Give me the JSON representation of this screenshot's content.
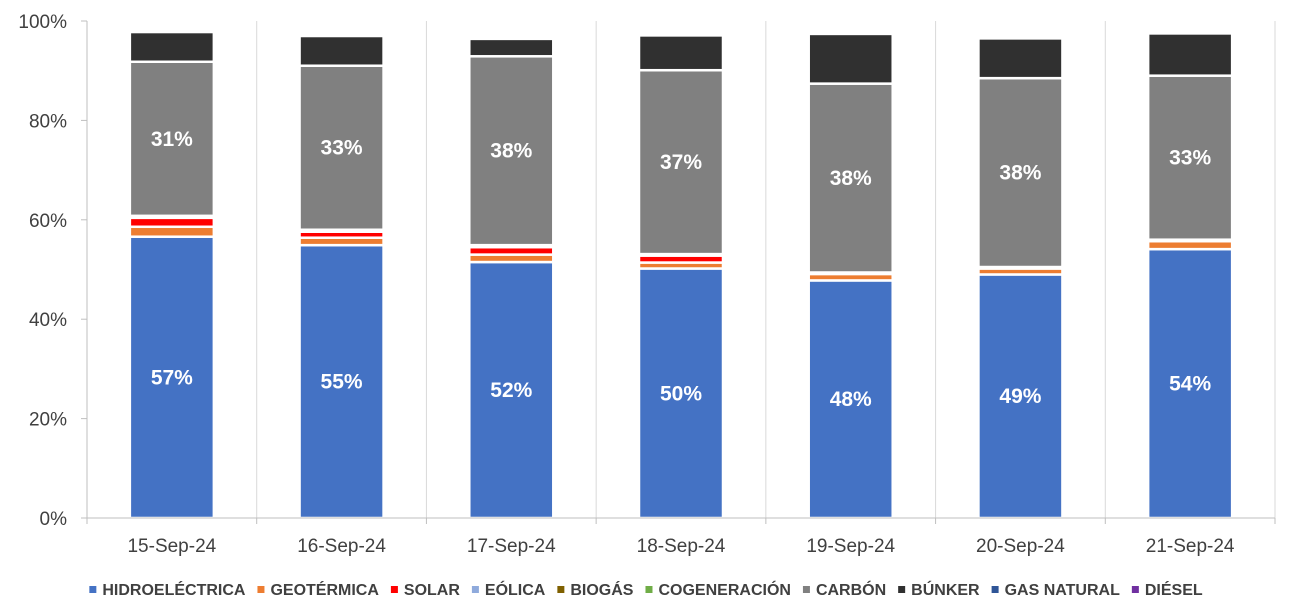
{
  "chart_data": {
    "type": "bar",
    "stacked": true,
    "percent_stacked": true,
    "categories": [
      "15-Sep-24",
      "16-Sep-24",
      "17-Sep-24",
      "18-Sep-24",
      "19-Sep-24",
      "20-Sep-24",
      "21-Sep-24"
    ],
    "ylim": [
      0,
      100
    ],
    "yticks": [
      "0%",
      "20%",
      "40%",
      "60%",
      "80%",
      "100%"
    ],
    "grid": "vertical-between-categories",
    "legend_position": "bottom",
    "series": [
      {
        "name": "HIDROELÉCTRICA",
        "color": "#4472C4",
        "values": [
          56.6,
          54.9,
          51.5,
          50.2,
          47.8,
          49.0,
          54.1
        ],
        "labels": [
          "57%",
          "55%",
          "52%",
          "50%",
          "48%",
          "49%",
          "54%"
        ]
      },
      {
        "name": "GEOTÉRMICA",
        "color": "#ED7D31",
        "values": [
          2.0,
          1.5,
          1.5,
          1.2,
          1.3,
          1.2,
          1.6
        ],
        "labels": []
      },
      {
        "name": "SOLAR",
        "color": "#FF0000",
        "values": [
          1.8,
          1.2,
          1.5,
          1.4,
          0.0,
          0.0,
          0.0
        ],
        "labels": []
      },
      {
        "name": "EÓLICA",
        "color": "#8FAADC",
        "values": [
          0.2,
          0.2,
          0.2,
          0.1,
          0.1,
          0.1,
          0.1
        ],
        "labels": []
      },
      {
        "name": "BIOGÁS",
        "color": "#7F6000",
        "values": [
          0.1,
          0.1,
          0.1,
          0.1,
          0.1,
          0.1,
          0.1
        ],
        "labels": []
      },
      {
        "name": "COGENERACIÓN",
        "color": "#70AD47",
        "values": [
          0.1,
          0.1,
          0.1,
          0.1,
          0.1,
          0.1,
          0.1
        ],
        "labels": []
      },
      {
        "name": "CARBÓN",
        "color": "#808080",
        "values": [
          31.0,
          33.0,
          38.0,
          37.0,
          38.0,
          38.0,
          33.0
        ],
        "labels": [
          "31%",
          "33%",
          "38%",
          "37%",
          "38%",
          "38%",
          "33%"
        ]
      },
      {
        "name": "BÚNKER",
        "color": "#303030",
        "values": [
          6.0,
          6.0,
          3.5,
          7.0,
          10.0,
          8.0,
          8.5
        ],
        "labels": []
      },
      {
        "name": "GAS NATURAL",
        "color": "#2F5597",
        "values": [
          0.3,
          0.3,
          0.0,
          0.0,
          0.0,
          0.0,
          0.0
        ],
        "labels": []
      },
      {
        "name": "DIÉSEL",
        "color": "#7030A0",
        "values": [
          0.0,
          0.0,
          0.0,
          0.0,
          0.0,
          0.0,
          0.0
        ],
        "labels": []
      }
    ],
    "title": "",
    "xlabel": "",
    "ylabel": ""
  }
}
